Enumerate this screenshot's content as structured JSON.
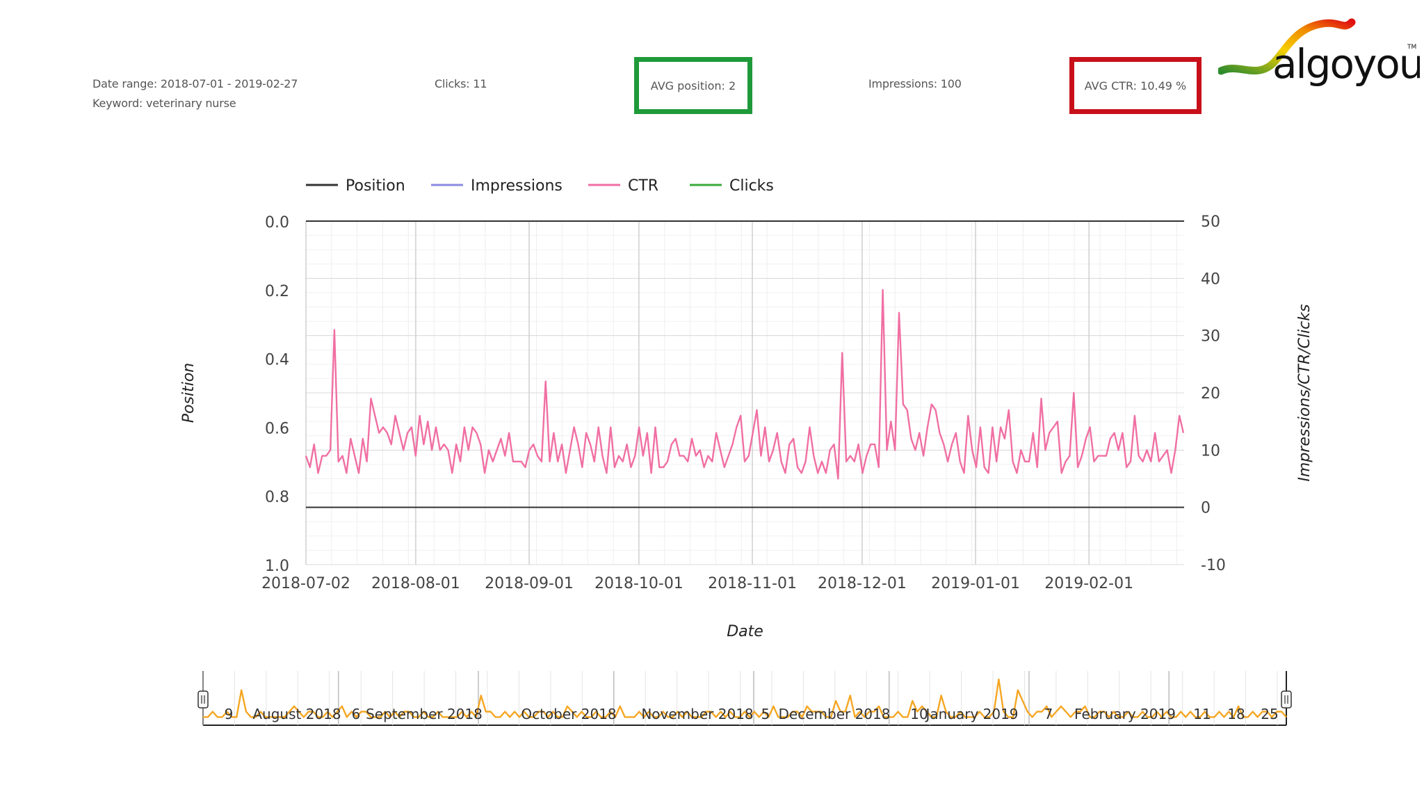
{
  "header": {
    "date_range": "Date range: 2018-07-01 - 2019-02-27",
    "keyword": "Keyword: veterinary nurse",
    "clicks": "Clicks: 11",
    "avg_position": "AVG position: 2",
    "impressions": "Impressions: 100",
    "avg_ctr": "AVG CTR: 10.49 %"
  },
  "logo": {
    "text": "algoyou",
    "tm": "TM"
  },
  "colors": {
    "position": "#333333",
    "impressions": "#8a8ae0",
    "ctr": "#f06fa3",
    "clicks": "#3aaa3a",
    "navigator": "#f5a623",
    "avg_position_box": "#1f9a3a",
    "avg_ctr_box": "#c8101a"
  },
  "chart_data": {
    "type": "line",
    "xlabel": "Date",
    "ylabel_left": "Position",
    "ylabel_right": "Impressions/CTR/Clicks",
    "legend_position": "top-left",
    "grid": true,
    "x_ticks": [
      "2018-07-02",
      "2018-08-01",
      "2018-09-01",
      "2018-10-01",
      "2018-11-01",
      "2018-12-01",
      "2019-01-01",
      "2019-02-01"
    ],
    "y_left_ticks": [
      "0.0",
      "0.2",
      "0.4",
      "0.6",
      "0.8",
      "1.0"
    ],
    "y_left_range": [
      0.0,
      1.0
    ],
    "y_left_reversed": true,
    "y_right_ticks": [
      "50",
      "40",
      "30",
      "20",
      "10",
      "0",
      "-10"
    ],
    "y_right_range": [
      -10,
      50
    ],
    "x_range": [
      "2018-07-02",
      "2019-02-27"
    ],
    "series": [
      {
        "name": "Position",
        "values": [
          0,
          0
        ]
      },
      {
        "name": "Impressions",
        "values": []
      },
      {
        "name": "CTR",
        "values": [
          9,
          7,
          11,
          6,
          9,
          9,
          10,
          31,
          8,
          9,
          6,
          12,
          9,
          6,
          12,
          8,
          19,
          16,
          13,
          14,
          13,
          11,
          16,
          13,
          10,
          13,
          14,
          9,
          16,
          11,
          15,
          10,
          14,
          10,
          11,
          10,
          6,
          11,
          8,
          14,
          10,
          14,
          13,
          11,
          6,
          10,
          8,
          10,
          12,
          9,
          13,
          8,
          8,
          8,
          7,
          10,
          11,
          9,
          8,
          22,
          8,
          13,
          8,
          11,
          6,
          10,
          14,
          11,
          7,
          13,
          11,
          8,
          14,
          9,
          6,
          14,
          7,
          9,
          8,
          11,
          7,
          9,
          14,
          9,
          13,
          6,
          14,
          7,
          7,
          8,
          11,
          12,
          9,
          9,
          8,
          12,
          9,
          10,
          7,
          9,
          8,
          13,
          10,
          7,
          9,
          11,
          14,
          16,
          8,
          9,
          13,
          17,
          9,
          14,
          8,
          10,
          13,
          8,
          6,
          11,
          12,
          7,
          6,
          8,
          14,
          9,
          6,
          8,
          6,
          10,
          11,
          5,
          27,
          8,
          9,
          8,
          11,
          6,
          9,
          11,
          11,
          7,
          38,
          10,
          15,
          10,
          34,
          18,
          17,
          12,
          10,
          13,
          9,
          14,
          18,
          17,
          13,
          11,
          8,
          11,
          13,
          8,
          6,
          16,
          10,
          7,
          14,
          7,
          6,
          14,
          8,
          14,
          12,
          17,
          8,
          6,
          10,
          8,
          8,
          13,
          7,
          19,
          10,
          13,
          14,
          15,
          6,
          8,
          9,
          20,
          7,
          9,
          12,
          14,
          8,
          9,
          9,
          9,
          12,
          13,
          10,
          13,
          7,
          8,
          16,
          9,
          8,
          10,
          8,
          13,
          8,
          9,
          10,
          6,
          10,
          16,
          13
        ]
      },
      {
        "name": "Clicks",
        "values": []
      }
    ]
  },
  "navigator": {
    "labels": [
      "9",
      "August 2018",
      "6",
      "September 2018",
      "October 2018",
      "November 2018",
      "5",
      "December 2018",
      "10",
      "January 2019",
      "7",
      "February 2019",
      "11",
      "18",
      "25"
    ],
    "series": [
      1,
      1,
      2,
      1,
      1,
      2,
      1,
      1,
      6,
      2,
      1,
      1,
      2,
      1,
      1,
      1,
      1,
      1,
      2,
      3,
      2,
      1,
      2,
      2,
      1,
      1,
      2,
      1,
      2,
      3,
      1,
      2,
      1,
      2,
      2,
      1,
      1,
      1,
      2,
      1,
      2,
      1,
      2,
      2,
      1,
      1,
      2,
      1,
      1,
      2,
      1,
      1,
      1,
      1,
      2,
      1,
      2,
      1,
      5,
      2,
      2,
      1,
      1,
      2,
      1,
      2,
      1,
      2,
      1,
      1,
      2,
      2,
      1,
      2,
      1,
      1,
      3,
      2,
      1,
      2,
      1,
      1,
      2,
      1,
      1,
      2,
      1,
      3,
      1,
      1,
      1,
      2,
      1,
      2,
      1,
      1,
      2,
      1,
      1,
      2,
      1,
      2,
      1,
      1,
      1,
      2,
      2,
      1,
      2,
      1,
      2,
      1,
      1,
      2,
      1,
      2,
      1,
      2,
      1,
      3,
      1,
      1,
      1,
      2,
      2,
      1,
      3,
      2,
      2,
      2,
      1,
      1,
      4,
      2,
      2,
      5,
      1,
      2,
      1,
      2,
      2,
      3,
      1,
      1,
      1,
      2,
      1,
      1,
      4,
      2,
      3,
      2,
      1,
      1,
      5,
      2,
      1,
      1,
      2,
      1,
      1,
      1,
      2,
      1,
      1,
      2,
      8,
      2,
      1,
      1,
      6,
      4,
      2,
      1,
      2,
      2,
      3,
      1,
      2,
      3,
      2,
      1,
      2,
      2,
      3,
      1,
      1,
      2,
      2,
      1,
      2,
      1,
      1,
      2,
      1,
      1,
      2,
      1,
      1,
      2,
      1,
      2,
      1,
      1,
      2,
      1,
      2,
      1,
      1,
      2,
      1,
      1,
      2,
      1,
      2,
      1,
      3,
      1,
      1,
      2,
      1,
      2,
      2,
      1,
      2,
      2,
      1
    ]
  }
}
